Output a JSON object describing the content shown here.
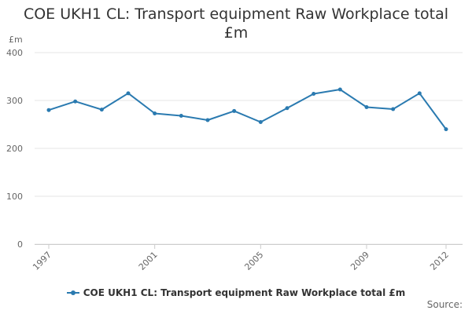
{
  "chart_data": {
    "type": "line",
    "title": "COE UKH1 CL: Transport equipment Raw Workplace total £m",
    "ylabel": "£m",
    "xlabel": "",
    "ylim": [
      0,
      400
    ],
    "yticks": [
      "0",
      "100",
      "200",
      "300",
      "400"
    ],
    "xlim": [
      1997,
      2012
    ],
    "xticks": [
      "1997",
      "2001",
      "2005",
      "2009",
      "2012"
    ],
    "x": [
      1997,
      1998,
      1999,
      2000,
      2001,
      2002,
      2003,
      2004,
      2005,
      2006,
      2007,
      2008,
      2009,
      2010,
      2011,
      2012
    ],
    "series": [
      {
        "name": "COE UKH1 CL: Transport equipment Raw Workplace total £m",
        "color": "#2a7ab0",
        "values": [
          280,
          298,
          281,
          315,
          273,
          268,
          259,
          278,
          255,
          284,
          314,
          323,
          286,
          282,
          315,
          240
        ]
      }
    ],
    "grid": true,
    "legend_position": "bottom-center"
  },
  "footer": {
    "source_label": "Source:"
  }
}
